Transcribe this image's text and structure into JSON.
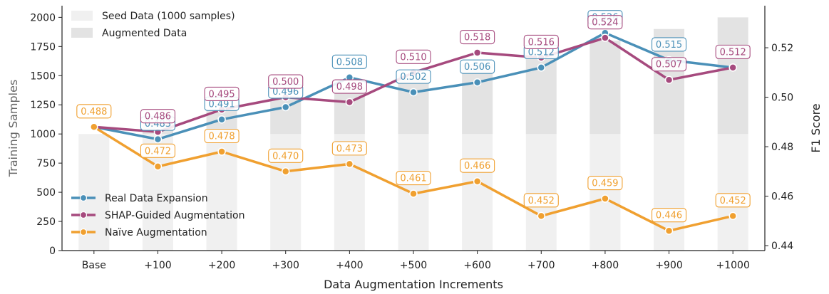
{
  "chart_data": {
    "type": "bar+line",
    "categories": [
      "Base",
      "+100",
      "+200",
      "+300",
      "+400",
      "+500",
      "+600",
      "+700",
      "+800",
      "+900",
      "+1000"
    ],
    "xlabel": "Data Augmentation Increments",
    "ylabel_left": "Training Samples",
    "ylabel_right": "F1 Score",
    "ylim_left": [
      0,
      2100
    ],
    "yticks_left": [
      0,
      250,
      500,
      750,
      1000,
      1250,
      1500,
      1750,
      2000
    ],
    "ylim_right": [
      0.438,
      0.537
    ],
    "yticks_right": [
      0.44,
      0.46,
      0.48,
      0.5,
      0.52
    ],
    "bars": {
      "seed": {
        "name": "Seed Data (1000 samples)",
        "values": [
          1000,
          1000,
          1000,
          1000,
          1000,
          1000,
          1000,
          1000,
          1000,
          1000,
          1000
        ],
        "color": "#f0f0f0"
      },
      "augmented": {
        "name": "Augmented Data",
        "values": [
          0,
          100,
          200,
          300,
          400,
          500,
          600,
          700,
          800,
          900,
          1000
        ],
        "color": "#e3e3e3"
      }
    },
    "series": [
      {
        "name": "Real Data Expansion",
        "color": "#4a90b8",
        "values": [
          0.488,
          0.483,
          0.491,
          0.496,
          0.508,
          0.502,
          0.506,
          0.512,
          0.526,
          0.515,
          0.512
        ],
        "labels": [
          "",
          "0.483",
          "0.491",
          "0.496",
          "0.508",
          "0.502",
          "0.506",
          "0.512",
          "0.526",
          "0.515",
          ""
        ]
      },
      {
        "name": "SHAP-Guided Augmentation",
        "color": "#a64a7e",
        "values": [
          0.488,
          0.486,
          0.495,
          0.5,
          0.498,
          0.51,
          0.518,
          0.516,
          0.524,
          0.507,
          0.512
        ],
        "labels": [
          "",
          "0.486",
          "0.495",
          "0.500",
          "0.498",
          "0.510",
          "0.518",
          "0.516",
          "0.524",
          "0.507",
          "0.512"
        ]
      },
      {
        "name": "Naïve Augmentation",
        "color": "#f0a030",
        "values": [
          0.488,
          0.472,
          0.478,
          0.47,
          0.473,
          0.461,
          0.466,
          0.452,
          0.459,
          0.446,
          0.452
        ],
        "labels": [
          "0.488",
          "0.472",
          "0.478",
          "0.470",
          "0.473",
          "0.461",
          "0.466",
          "0.452",
          "0.459",
          "0.446",
          "0.452"
        ]
      }
    ]
  }
}
